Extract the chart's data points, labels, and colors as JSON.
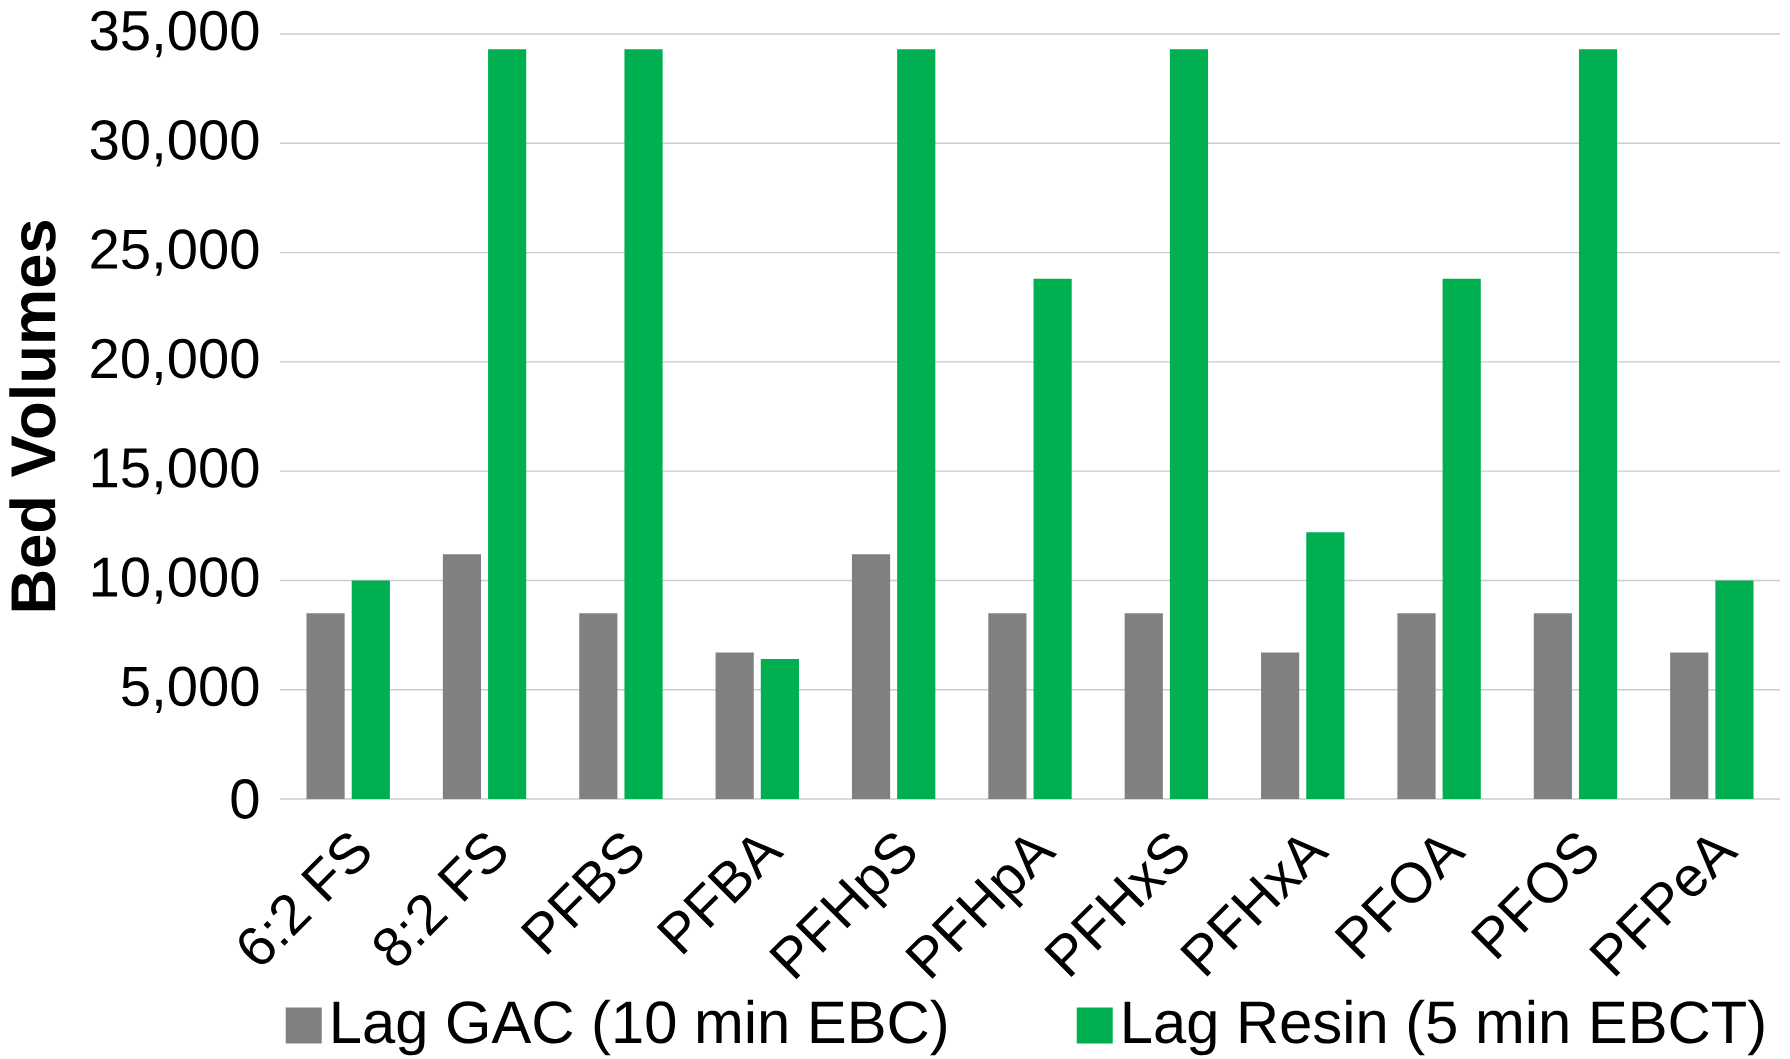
{
  "chart_data": {
    "type": "bar",
    "ylabel": "Bed Volumes",
    "categories": [
      "6:2 FS",
      "8:2 FS",
      "PFBS",
      "PFBA",
      "PFHpS",
      "PFHpA",
      "PFHxS",
      "PFHxA",
      "PFOA",
      "PFOS",
      "PFPeA"
    ],
    "series": [
      {
        "name": "Lag GAC (10 min EBC)",
        "color": "#808080",
        "values": [
          8500,
          11200,
          8500,
          6700,
          11200,
          8500,
          8500,
          6700,
          8500,
          8500,
          6700
        ]
      },
      {
        "name": "Lag Resin (5 min EBCT)",
        "color": "#00b050",
        "values": [
          10000,
          34300,
          34300,
          6400,
          34300,
          23800,
          34300,
          12200,
          23800,
          34300,
          10000
        ]
      }
    ],
    "ylim": [
      0,
      35000
    ],
    "yticks": [
      {
        "value": 0,
        "label": "0"
      },
      {
        "value": 5000,
        "label": "5,000"
      },
      {
        "value": 10000,
        "label": "10,000"
      },
      {
        "value": 15000,
        "label": "15,000"
      },
      {
        "value": 20000,
        "label": "20,000"
      },
      {
        "value": 25000,
        "label": "25,000"
      },
      {
        "value": 30000,
        "label": "30,000"
      },
      {
        "value": 35000,
        "label": "35,000"
      }
    ],
    "grid": "y",
    "legend": "bottom"
  }
}
